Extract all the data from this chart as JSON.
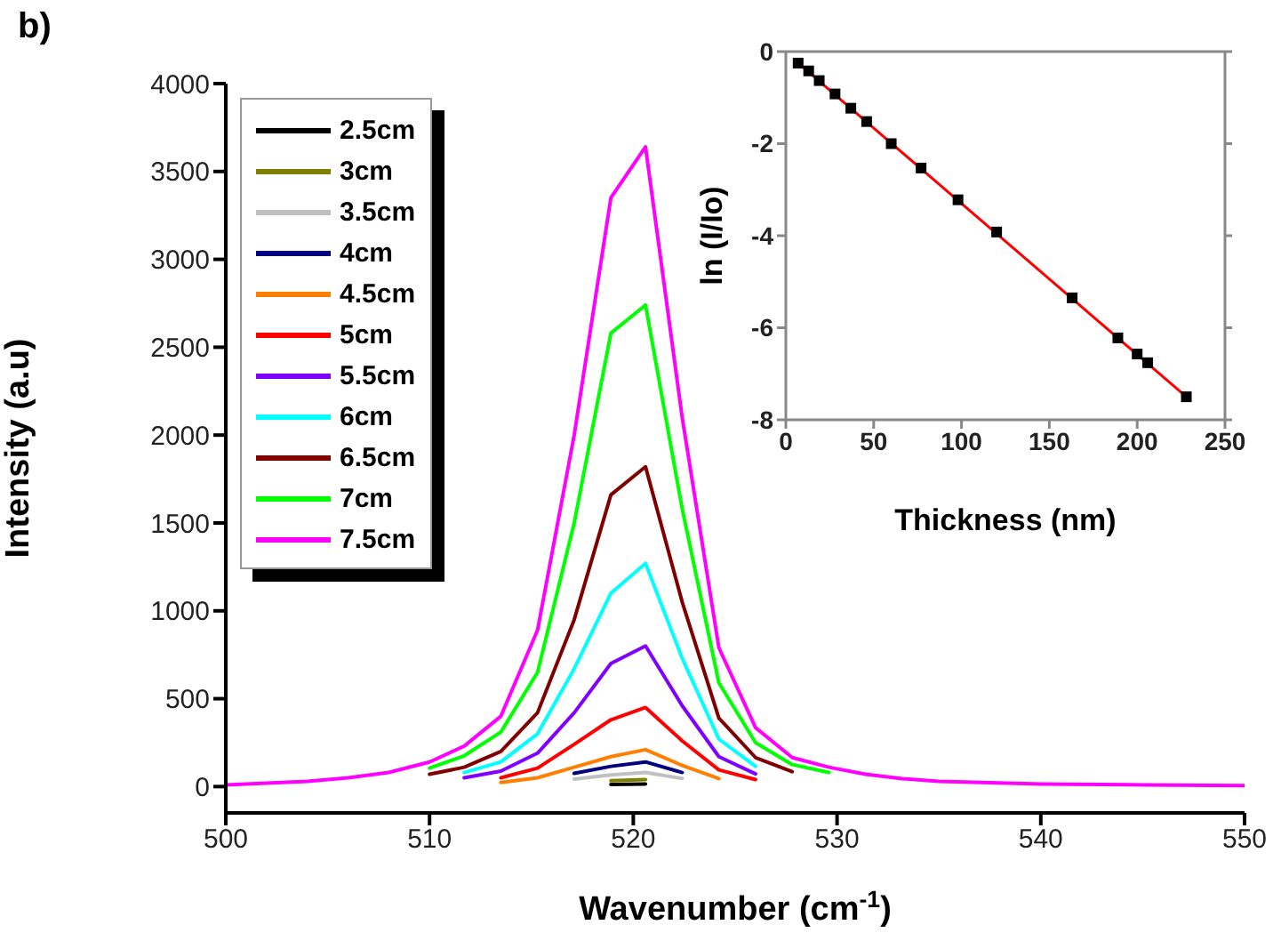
{
  "chart_data": [
    {
      "type": "line",
      "title": "b)",
      "xlabel": "Wavenumber (cm$^{-1}$)",
      "ylabel": "Intensity (a.u)",
      "x": [
        500,
        502,
        504,
        506,
        508,
        510,
        511.7,
        513.5,
        515.3,
        517.1,
        518.9,
        520.6,
        522.4,
        524.2,
        526,
        527.8,
        529.6,
        531.4,
        533.2,
        535,
        540,
        545,
        550
      ],
      "xlim": [
        500,
        550
      ],
      "xticks": [
        500,
        510,
        520,
        530,
        540,
        550
      ],
      "ylim": [
        -150,
        4000
      ],
      "yticks": [
        0,
        500,
        1000,
        1500,
        2000,
        2500,
        3000,
        3500,
        4000
      ],
      "legend": "top left",
      "series": [
        {
          "name": "2.5cm",
          "color": "#000000",
          "values": [
            null,
            null,
            null,
            null,
            null,
            null,
            null,
            null,
            null,
            null,
            12,
            15,
            null,
            null,
            null,
            null,
            null,
            null,
            null,
            null,
            null,
            null,
            null
          ]
        },
        {
          "name": "3cm",
          "color": "#808000",
          "values": [
            null,
            null,
            null,
            null,
            null,
            null,
            null,
            null,
            null,
            null,
            33,
            40,
            null,
            null,
            null,
            null,
            null,
            null,
            null,
            null,
            null,
            null,
            null
          ]
        },
        {
          "name": "3.5cm",
          "color": "#c0c0c0",
          "values": [
            null,
            null,
            null,
            null,
            null,
            null,
            null,
            null,
            null,
            42,
            66,
            80,
            46,
            null,
            null,
            null,
            null,
            null,
            null,
            null,
            null,
            null,
            null
          ]
        },
        {
          "name": "4cm",
          "color": "#000080",
          "values": [
            null,
            null,
            null,
            null,
            null,
            null,
            null,
            null,
            null,
            75,
            115,
            140,
            80,
            null,
            null,
            null,
            null,
            null,
            null,
            null,
            null,
            null,
            null
          ]
        },
        {
          "name": "4.5cm",
          "color": "#ff8000",
          "values": [
            null,
            null,
            null,
            null,
            null,
            null,
            null,
            23,
            50,
            110,
            170,
            210,
            120,
            45,
            null,
            null,
            null,
            null,
            null,
            null,
            null,
            null,
            null
          ]
        },
        {
          "name": "5cm",
          "color": "#ff0000",
          "values": [
            null,
            null,
            null,
            null,
            null,
            null,
            null,
            50,
            105,
            240,
            380,
            450,
            260,
            95,
            40,
            null,
            null,
            null,
            null,
            null,
            null,
            null,
            null
          ]
        },
        {
          "name": "5.5cm",
          "color": "#8000ff",
          "values": [
            null,
            null,
            null,
            null,
            null,
            null,
            50,
            88,
            190,
            420,
            700,
            800,
            460,
            170,
            72,
            null,
            null,
            null,
            null,
            null,
            null,
            null,
            null
          ]
        },
        {
          "name": "6cm",
          "color": "#00ffff",
          "values": [
            null,
            null,
            null,
            null,
            null,
            null,
            80,
            140,
            300,
            670,
            1100,
            1270,
            730,
            270,
            115,
            null,
            null,
            null,
            null,
            null,
            null,
            null,
            null
          ]
        },
        {
          "name": "6.5cm",
          "color": "#800000",
          "values": [
            null,
            null,
            null,
            null,
            null,
            70,
            110,
            200,
            420,
            950,
            1660,
            1820,
            1050,
            390,
            165,
            85,
            null,
            null,
            null,
            null,
            null,
            null,
            null
          ]
        },
        {
          "name": "7cm",
          "color": "#00ff00",
          "values": [
            null,
            null,
            null,
            null,
            null,
            105,
            175,
            310,
            650,
            1500,
            2580,
            2740,
            1580,
            590,
            250,
            125,
            80,
            null,
            null,
            null,
            null,
            null,
            null
          ]
        },
        {
          "name": "7.5cm",
          "color": "#ff00ff",
          "values": [
            10,
            20,
            30,
            50,
            80,
            140,
            230,
            400,
            890,
            2000,
            3350,
            3640,
            2100,
            790,
            335,
            165,
            110,
            70,
            45,
            30,
            15,
            10,
            5
          ]
        }
      ]
    },
    {
      "type": "scatter",
      "xlabel": "Thickness (nm)",
      "ylabel": "ln (I/Io)",
      "xlim": [
        0,
        250
      ],
      "xticks": [
        0,
        50,
        100,
        150,
        200,
        250
      ],
      "ylim": [
        -8,
        0
      ],
      "yticks": [
        0,
        -2,
        -4,
        -6,
        -8
      ],
      "series": [
        {
          "type": "scatter",
          "color": "#000000",
          "marker": "square",
          "x": [
            7,
            13,
            19,
            28,
            37,
            46,
            60,
            77,
            98,
            120,
            163,
            189,
            200,
            206,
            228
          ],
          "values": [
            -0.25,
            -0.42,
            -0.63,
            -0.92,
            -1.23,
            -1.52,
            -2.0,
            -2.53,
            -3.22,
            -3.92,
            -5.35,
            -6.22,
            -6.57,
            -6.76,
            -7.5
          ]
        },
        {
          "type": "line",
          "color": "#ff0000",
          "x": [
            7,
            228
          ],
          "values": [
            -0.25,
            -7.5
          ]
        }
      ]
    }
  ]
}
